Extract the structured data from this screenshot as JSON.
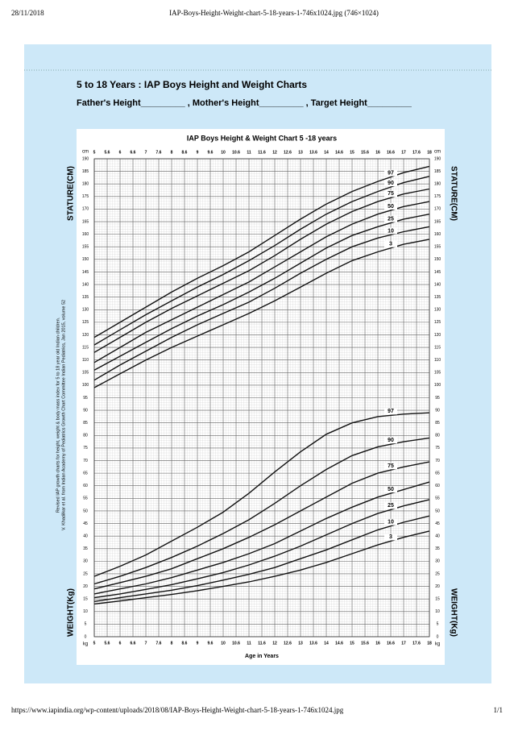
{
  "page": {
    "date": "28/11/2018",
    "tab_title": "IAP-Boys-Height-Weight-chart-5-18-years-1-746x1024.jpg (746×1024)",
    "url": "https://www.iapindia.org/wp-content/uploads/2018/08/IAP-Boys-Height-Weight-chart-5-18-years-1-746x1024.jpg",
    "page_number": "1/1",
    "heading": "5 to 18 Years : IAP Boys Height and Weight Charts",
    "form_line": "Father's Height_________ ,  Mother's Height_________ ,  Target Height_________"
  },
  "chart_data": {
    "type": "line",
    "title": "IAP Boys Height & Weight Chart 5 -18 years",
    "xlabel": "Age in Years",
    "ylabel_top": "STATURE(CM)",
    "ylabel_bottom": "WEIGHT(Kg)",
    "unit_top": "cm",
    "unit_bottom": "kg",
    "note": [
      "Revised IAP growth charts for height, weight & body mass index for 5 to 18 year old Indian children.",
      "V. Khadilkar et al. from Indian Academy of Pediatrics Growth Chart Committee Indian Pediatrics, Jan 2015, volume 52"
    ],
    "x": [
      5,
      6,
      7,
      8,
      9,
      10,
      11,
      12,
      13,
      14,
      15,
      16,
      17,
      18
    ],
    "xlim": [
      5,
      18
    ],
    "xticks": [
      5,
      {
        "value": 5.5,
        "label": "5.6"
      },
      6,
      {
        "value": 6.5,
        "label": "6.6"
      },
      7,
      {
        "value": 7.5,
        "label": "7.6"
      },
      8,
      {
        "value": 8.5,
        "label": "8.6"
      },
      9,
      {
        "value": 9.5,
        "label": "9.6"
      },
      10,
      {
        "value": 10.5,
        "label": "10.6"
      },
      11,
      {
        "value": 11.5,
        "label": "11.6"
      },
      12,
      {
        "value": 12.5,
        "label": "12.6"
      },
      13,
      {
        "value": 13.5,
        "label": "13.6"
      },
      14,
      {
        "value": 14.5,
        "label": "14.6"
      },
      15,
      {
        "value": 15.5,
        "label": "15.6"
      },
      16,
      {
        "value": 16.5,
        "label": "16.6"
      },
      17,
      {
        "value": 17.5,
        "label": "17.6"
      },
      18
    ],
    "ylim": [
      0,
      190
    ],
    "yticks": [
      0,
      5,
      10,
      15,
      20,
      25,
      30,
      35,
      40,
      45,
      50,
      55,
      60,
      65,
      70,
      75,
      80,
      85,
      90,
      95,
      100,
      105,
      110,
      115,
      120,
      125,
      130,
      135,
      140,
      145,
      150,
      155,
      160,
      165,
      170,
      175,
      180,
      185,
      190
    ],
    "grid": true,
    "color": "#111111",
    "series": [
      {
        "name": "97",
        "color": "#111111",
        "values": [
          119,
          125,
          131,
          137,
          142.5,
          147.5,
          153,
          159.5,
          166,
          172,
          177,
          181,
          184.5,
          187
        ]
      },
      {
        "name": "90",
        "color": "#111111",
        "values": [
          116,
          122,
          128,
          133.5,
          139,
          144,
          149.5,
          155.5,
          162,
          168,
          173,
          177,
          180.5,
          183
        ]
      },
      {
        "name": "75",
        "color": "#111111",
        "values": [
          113,
          119,
          125,
          130.5,
          135.5,
          140.5,
          145.5,
          151.5,
          158,
          164,
          169,
          173,
          176,
          178
        ]
      },
      {
        "name": "50",
        "color": "#111111",
        "values": [
          109,
          115,
          121,
          126,
          131,
          136,
          141,
          147,
          153,
          159,
          164,
          168,
          171,
          173
        ]
      },
      {
        "name": "25",
        "color": "#111111",
        "values": [
          106,
          111.5,
          117,
          122.5,
          127.5,
          132,
          137,
          142.5,
          148.5,
          154.5,
          159.5,
          163,
          166,
          168
        ]
      },
      {
        "name": "10",
        "color": "#111111",
        "values": [
          102,
          108,
          113.5,
          119,
          124,
          128.5,
          133,
          138.5,
          144.5,
          150,
          155,
          158.5,
          161,
          163
        ]
      },
      {
        "name": "3",
        "color": "#111111",
        "values": [
          99,
          104.5,
          110,
          115,
          119.5,
          124,
          128.5,
          133.5,
          139,
          144.5,
          149.5,
          153,
          156,
          158
        ]
      },
      {
        "name": "97",
        "color": "#111111",
        "values": [
          24,
          28,
          32.5,
          38,
          43.5,
          49.5,
          57,
          65.5,
          73.5,
          80.5,
          85,
          87.5,
          88.5,
          89
        ]
      },
      {
        "name": "90",
        "color": "#111111",
        "values": [
          21,
          24,
          27.5,
          31.5,
          36,
          41,
          46.5,
          53,
          60,
          66.5,
          72,
          75.5,
          77.5,
          79
        ]
      },
      {
        "name": "75",
        "color": "#111111",
        "values": [
          19,
          21.5,
          24,
          27,
          31,
          35,
          39.5,
          44.5,
          50,
          55.5,
          61,
          65,
          67.5,
          69.5
        ]
      },
      {
        "name": "50",
        "color": "#111111",
        "values": [
          17,
          19,
          21,
          23.5,
          26.5,
          29.5,
          33,
          37,
          42,
          47,
          51.5,
          55.5,
          58.5,
          61.5
        ]
      },
      {
        "name": "25",
        "color": "#111111",
        "values": [
          15.5,
          17,
          18.8,
          20.7,
          23,
          25.5,
          28.5,
          32,
          36,
          40.5,
          45,
          49,
          52,
          54.5
        ]
      },
      {
        "name": "10",
        "color": "#111111",
        "values": [
          14,
          15.5,
          17,
          18.5,
          20.3,
          22.5,
          24.8,
          27.5,
          31,
          34.5,
          38.5,
          42.5,
          45.5,
          48
        ]
      },
      {
        "name": "3",
        "color": "#111111",
        "values": [
          13,
          14.2,
          15.5,
          16.8,
          18.3,
          20,
          21.8,
          24,
          26.5,
          29.5,
          33,
          36.5,
          39.5,
          42
        ]
      }
    ]
  }
}
